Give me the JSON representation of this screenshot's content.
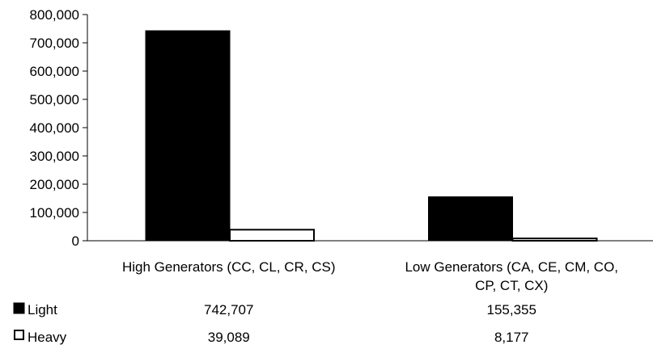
{
  "chart_data": {
    "type": "bar",
    "categories": [
      [
        "High Generators (CC, CL, CR, CS)"
      ],
      [
        "Low Generators (CA, CE, CM, CO,",
        "CP, CT, CX)"
      ]
    ],
    "series": [
      {
        "name": "Light",
        "values": [
          742707,
          155355
        ],
        "labels": [
          "742,707",
          "155,355"
        ],
        "color": "#000000",
        "fill": "solid"
      },
      {
        "name": "Heavy",
        "values": [
          39089,
          8177
        ],
        "labels": [
          "39,089",
          "8,177"
        ],
        "color": "#ffffff",
        "fill": "outline"
      }
    ],
    "ylim": [
      0,
      800000
    ],
    "yticks": [
      0,
      100000,
      200000,
      300000,
      400000,
      500000,
      600000,
      700000,
      800000
    ],
    "ytick_labels": [
      "0",
      "100,000",
      "200,000",
      "300,000",
      "400,000",
      "500,000",
      "600,000",
      "700,000",
      "800,000"
    ],
    "grid": false,
    "legend": "data-table-left"
  }
}
